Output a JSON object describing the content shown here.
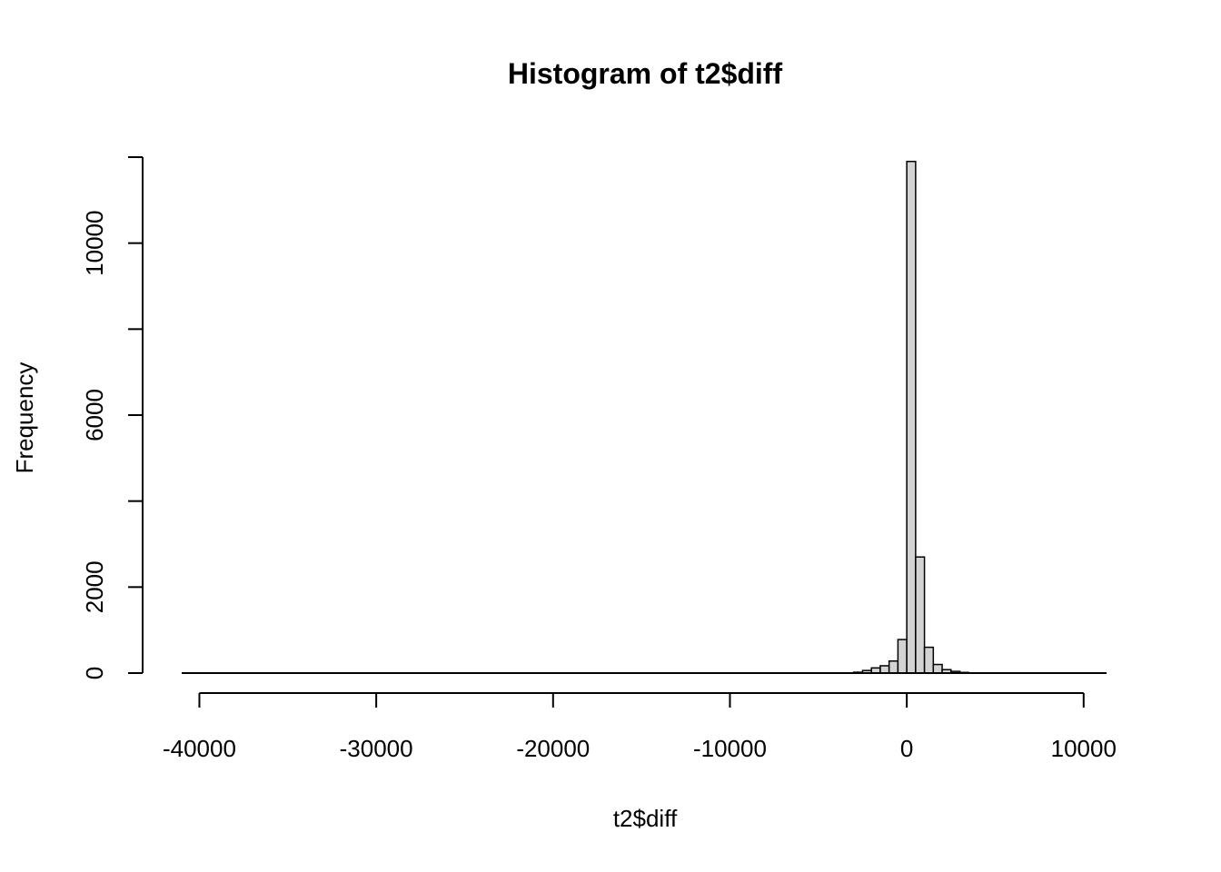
{
  "chart_data": {
    "type": "bar",
    "title": "Histogram of t2$diff",
    "xlabel": "t2$diff",
    "ylabel": "Frequency",
    "xlim": [
      -41000,
      11500
    ],
    "ylim": [
      0,
      12000
    ],
    "x_ticks": [
      -40000,
      -30000,
      -20000,
      -10000,
      0,
      10000
    ],
    "x_tick_labels": [
      "-40000",
      "-30000",
      "-20000",
      "-10000",
      "0",
      "10000"
    ],
    "y_ticks": [
      0,
      2000,
      4000,
      6000,
      8000,
      10000,
      12000
    ],
    "y_tick_labels": [
      "0",
      "2000",
      "",
      "6000",
      "",
      "10000",
      ""
    ],
    "bin_width": 500,
    "bins": [
      {
        "x0": -4500,
        "x1": -4000,
        "count": 2
      },
      {
        "x0": -4000,
        "x1": -3500,
        "count": 3
      },
      {
        "x0": -3500,
        "x1": -3000,
        "count": 5
      },
      {
        "x0": -3000,
        "x1": -2500,
        "count": 20
      },
      {
        "x0": -2500,
        "x1": -2000,
        "count": 60
      },
      {
        "x0": -2000,
        "x1": -1500,
        "count": 120
      },
      {
        "x0": -1500,
        "x1": -1000,
        "count": 170
      },
      {
        "x0": -1000,
        "x1": -500,
        "count": 280
      },
      {
        "x0": -500,
        "x1": 0,
        "count": 780
      },
      {
        "x0": 0,
        "x1": 500,
        "count": 11900
      },
      {
        "x0": 500,
        "x1": 1000,
        "count": 2700
      },
      {
        "x0": 1000,
        "x1": 1500,
        "count": 600
      },
      {
        "x0": 1500,
        "x1": 2000,
        "count": 200
      },
      {
        "x0": 2000,
        "x1": 2500,
        "count": 80
      },
      {
        "x0": 2500,
        "x1": 3000,
        "count": 40
      },
      {
        "x0": 3000,
        "x1": 3500,
        "count": 15
      },
      {
        "x0": 3500,
        "x1": 4000,
        "count": 5
      }
    ],
    "baseline_x_range": [
      -41000,
      11300
    ],
    "grid": false,
    "legend": "none"
  }
}
